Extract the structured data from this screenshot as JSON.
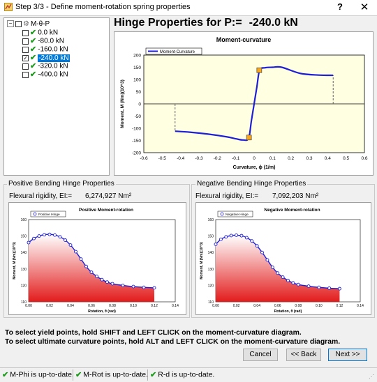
{
  "window": {
    "title": "Step 3/3 - Define moment-rotation spring properties",
    "help_label": "?",
    "close_label": "✕"
  },
  "tree": {
    "root_label": "M-θ-P",
    "items": [
      {
        "label": "0.0 kN",
        "checked": false,
        "selected": false
      },
      {
        "label": "-80.0 kN",
        "checked": false,
        "selected": false
      },
      {
        "label": "-160.0 kN",
        "checked": false,
        "selected": false
      },
      {
        "label": "-240.0 kN",
        "checked": true,
        "selected": true
      },
      {
        "label": "-320.0 kN",
        "checked": false,
        "selected": false
      },
      {
        "label": "-400.0 kN",
        "checked": false,
        "selected": false
      }
    ]
  },
  "hinge": {
    "title": "Hinge Properties for P:=",
    "value": "-240.0 kN"
  },
  "positive": {
    "section_label": "Positive Bending Hinge Properties",
    "rigidity_label": "Flexural rigidity, EI:=",
    "rigidity_value": "6,274,927 Nm²"
  },
  "negative": {
    "section_label": "Negative Bending Hinge Properties",
    "rigidity_label": "Flexural rigidity, EI:=",
    "rigidity_value": "7,092,203 Nm²"
  },
  "instructions": {
    "line1": "To select yield points, hold SHIFT and LEFT CLICK on the moment-curvature diagram.",
    "line2": "To select ultimate curvature points, hold ALT and LEFT CLICK on the moment-curvature diagram."
  },
  "buttons": {
    "cancel": "Cancel",
    "back": "<< Back",
    "next": "Next >>"
  },
  "status": {
    "mphi": "M-Phi is up-to-date.",
    "mrot": "M-Rot is up-to-date.",
    "rd": "R-d is up-to-date."
  },
  "chart_data": [
    {
      "type": "line",
      "title": "Moment-curvature",
      "xlabel": "Curvature, ϕ (1/m)",
      "ylabel": "Moment, M (Nm)(10^3)",
      "xlim": [
        -0.6,
        0.6
      ],
      "ylim": [
        -200,
        200
      ],
      "xticks": [
        "-0.6",
        "-0.5",
        "-0.4",
        "-0.3",
        "-0.2",
        "-0.1",
        "0",
        "0.1",
        "0.2",
        "0.3",
        "0.4",
        "0.5",
        "0.6"
      ],
      "yticks": [
        "200",
        "150",
        "100",
        "50",
        "0",
        "-50",
        "-100",
        "-150",
        "-200"
      ],
      "legend": "top-left",
      "series": [
        {
          "name": "Moment-Curvature",
          "color": "#1f1fd6",
          "x": [
            -0.43,
            -0.35,
            -0.25,
            -0.15,
            -0.1,
            -0.06,
            -0.03,
            -0.015,
            0,
            0.015,
            0.03,
            0.06,
            0.1,
            0.15,
            0.25,
            0.35,
            0.43
          ],
          "y": [
            -112,
            -116,
            -124,
            -135,
            -143,
            -148,
            -141,
            -70,
            0,
            70,
            138,
            148,
            150,
            150,
            125,
            118,
            117
          ]
        }
      ],
      "yield_points": [
        {
          "x": 0.028,
          "y": 138
        },
        {
          "x": -0.028,
          "y": -138
        }
      ],
      "ultimate_curvature": [
        0.43,
        -0.43
      ]
    },
    {
      "type": "scatter",
      "title": "Positive Moment-rotation",
      "xlabel": "Rotation, θ (rad)",
      "ylabel": "Moment, M (Nm)(10^3)",
      "xlim": [
        0,
        0.14
      ],
      "ylim": [
        110,
        160
      ],
      "xticks": [
        "0.00",
        "0.02",
        "0.04",
        "0.06",
        "0.08",
        "0.10",
        "0.12",
        "0.14"
      ],
      "yticks": [
        "160",
        "150",
        "140",
        "130",
        "120",
        "110"
      ],
      "legend": "top-left",
      "series": [
        {
          "name": "Positive Hinge",
          "color": "#1f1fd6",
          "x": [
            0.0,
            0.005,
            0.01,
            0.015,
            0.02,
            0.025,
            0.03,
            0.035,
            0.04,
            0.045,
            0.05,
            0.055,
            0.06,
            0.065,
            0.07,
            0.075,
            0.08,
            0.09,
            0.1,
            0.11,
            0.12
          ],
          "y": [
            146,
            148.5,
            150,
            150.8,
            151,
            150.6,
            149.5,
            147.5,
            144.5,
            140.5,
            136,
            131.5,
            128,
            125.5,
            123.5,
            122,
            121,
            120,
            119.3,
            118.8,
            118.5
          ]
        }
      ]
    },
    {
      "type": "scatter",
      "title": "Negative Moment-rotation",
      "xlabel": "Rotation, θ (rad)",
      "ylabel": "Moment, M (Nm)(10^3)",
      "xlim": [
        0,
        0.14
      ],
      "ylim": [
        110,
        160
      ],
      "xticks": [
        "0.00",
        "0.02",
        "0.04",
        "0.06",
        "0.08",
        "0.10",
        "0.12",
        "0.14"
      ],
      "yticks": [
        "160",
        "150",
        "140",
        "130",
        "120",
        "110"
      ],
      "legend": "top-left",
      "series": [
        {
          "name": "Negative Hinge",
          "color": "#1f1fd6",
          "x": [
            0.0,
            0.005,
            0.01,
            0.015,
            0.02,
            0.025,
            0.03,
            0.035,
            0.04,
            0.045,
            0.05,
            0.055,
            0.06,
            0.065,
            0.07,
            0.075,
            0.08,
            0.09,
            0.1,
            0.11,
            0.12
          ],
          "y": [
            145,
            148,
            149.5,
            150.3,
            150.5,
            150.2,
            149,
            147,
            144,
            140,
            135.5,
            131,
            127.5,
            125,
            123,
            121.5,
            120.5,
            119.5,
            118.8,
            118.3,
            118
          ]
        }
      ]
    }
  ]
}
